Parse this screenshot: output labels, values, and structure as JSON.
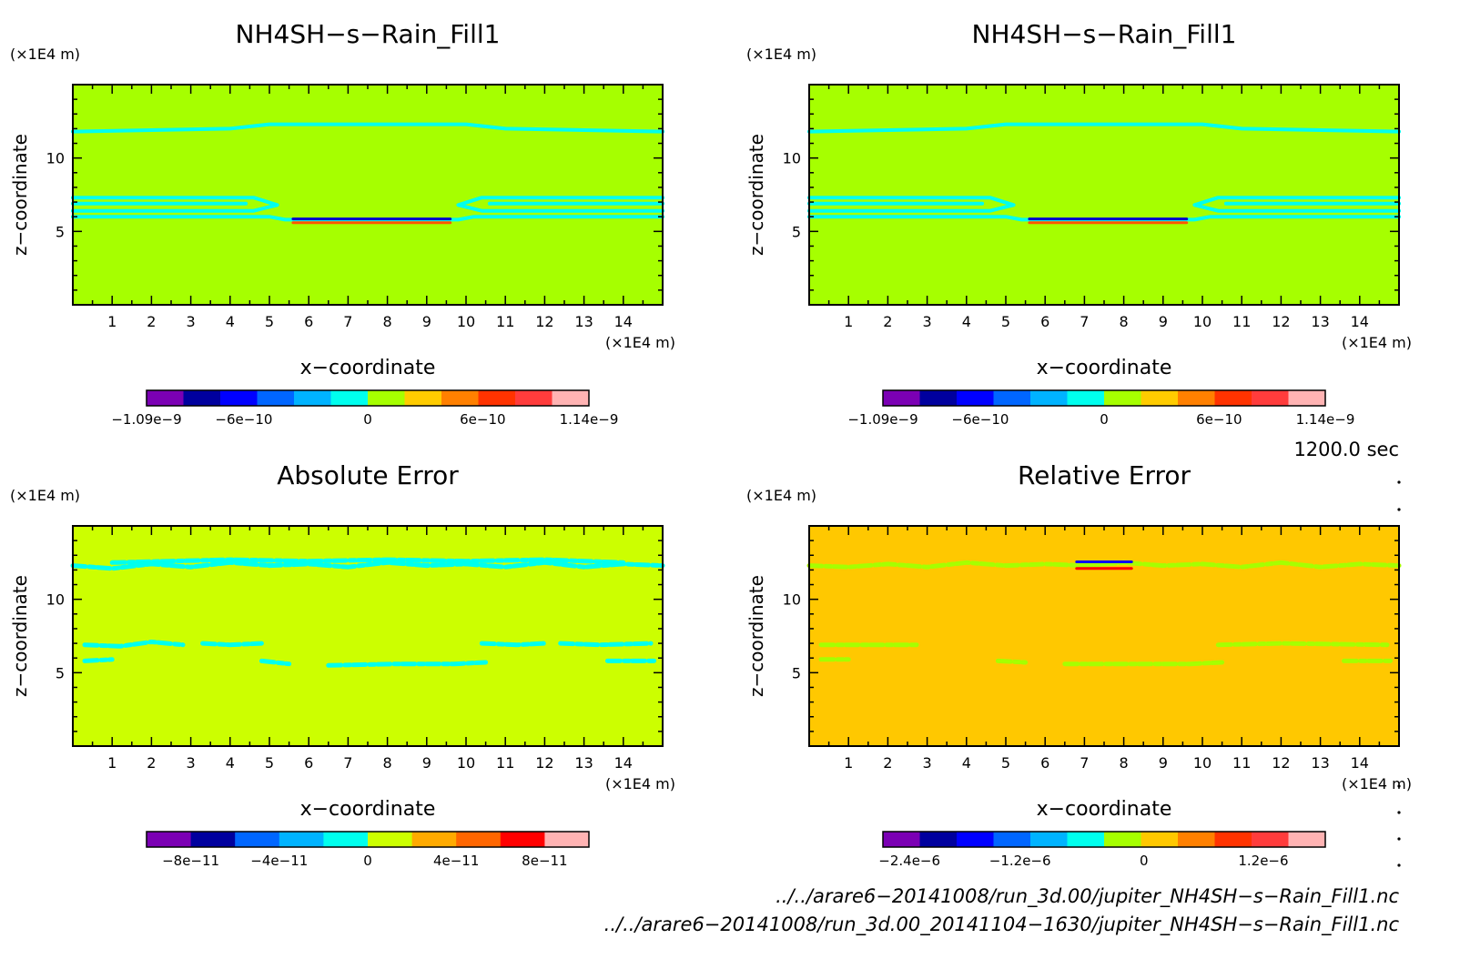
{
  "chart_data": [
    {
      "type": "heatmap",
      "title": "NH4SH−s−Rain_Fill1",
      "xlabel": "x−coordinate",
      "ylabel": "z−coordinate",
      "x_unit": "(×1E4 m)",
      "z_unit": "(×1E4 m)",
      "xlim": [
        0,
        15
      ],
      "ylim": [
        0,
        15
      ],
      "x_ticks": [
        1,
        2,
        3,
        4,
        5,
        6,
        7,
        8,
        9,
        10,
        11,
        12,
        13,
        14
      ],
      "z_ticks": [
        5,
        10
      ],
      "background_color": "#a6ff00",
      "contours": [
        {
          "level": "band",
          "color": "#00ffee",
          "points": [
            [
              0,
              11.8
            ],
            [
              4,
              12.0
            ],
            [
              5,
              12.3
            ],
            [
              10,
              12.3
            ],
            [
              11,
              12.0
            ],
            [
              15,
              11.8
            ]
          ]
        },
        {
          "level": "band",
          "color": "#00ffee",
          "points": [
            [
              0,
              7.3
            ],
            [
              4.6,
              7.3
            ],
            [
              5.2,
              6.8
            ],
            [
              4.6,
              6.4
            ],
            [
              0,
              6.4
            ]
          ]
        },
        {
          "level": "band",
          "color": "#00ffee",
          "points": [
            [
              0,
              6.9
            ],
            [
              4.4,
              6.9
            ]
          ]
        },
        {
          "level": "band",
          "color": "#00ffee",
          "points": [
            [
              15,
              7.3
            ],
            [
              10.4,
              7.3
            ],
            [
              9.8,
              6.8
            ],
            [
              10.4,
              6.4
            ],
            [
              15,
              6.4
            ]
          ]
        },
        {
          "level": "band",
          "color": "#00ffee",
          "points": [
            [
              15,
              6.9
            ],
            [
              10.6,
              6.9
            ]
          ]
        },
        {
          "level": "band",
          "color": "#00ffee",
          "points": [
            [
              0,
              6.0
            ],
            [
              5.0,
              6.0
            ],
            [
              5.4,
              5.8
            ],
            [
              9.8,
              5.8
            ],
            [
              10.2,
              6.0
            ],
            [
              15,
              6.0
            ]
          ]
        },
        {
          "level": "min",
          "color": "#0000cc",
          "points": [
            [
              5.6,
              5.85
            ],
            [
              9.6,
              5.85
            ]
          ]
        },
        {
          "level": "max",
          "color": "#ff5500",
          "points": [
            [
              5.6,
              5.6
            ],
            [
              9.6,
              5.6
            ]
          ]
        }
      ],
      "colorbar": {
        "colors": [
          "#7b00b4",
          "#00009e",
          "#0000ff",
          "#0066ff",
          "#00b3ff",
          "#00ffee",
          "#a6ff00",
          "#ffcc00",
          "#ff8000",
          "#ff3300",
          "#ff3c3c",
          "#ffb3b3"
        ],
        "tick_labels": [
          "−1.09e−9",
          "−6e−10",
          "0",
          "6e−10",
          "1.14e−9"
        ],
        "tick_fracs": [
          0,
          0.22,
          0.5,
          0.76,
          1
        ]
      }
    },
    {
      "type": "heatmap",
      "title": "NH4SH−s−Rain_Fill1",
      "xlabel": "x−coordinate",
      "ylabel": "z−coordinate",
      "x_unit": "(×1E4 m)",
      "z_unit": "(×1E4 m)",
      "xlim": [
        0,
        15
      ],
      "ylim": [
        0,
        15
      ],
      "x_ticks": [
        1,
        2,
        3,
        4,
        5,
        6,
        7,
        8,
        9,
        10,
        11,
        12,
        13,
        14
      ],
      "z_ticks": [
        5,
        10
      ],
      "background_color": "#a6ff00",
      "contours": [
        {
          "level": "band",
          "color": "#00ffee",
          "points": [
            [
              0,
              11.8
            ],
            [
              4,
              12.0
            ],
            [
              5,
              12.3
            ],
            [
              10,
              12.3
            ],
            [
              11,
              12.0
            ],
            [
              15,
              11.8
            ]
          ]
        },
        {
          "level": "band",
          "color": "#00ffee",
          "points": [
            [
              0,
              7.3
            ],
            [
              4.6,
              7.3
            ],
            [
              5.2,
              6.8
            ],
            [
              4.6,
              6.4
            ],
            [
              0,
              6.4
            ]
          ]
        },
        {
          "level": "band",
          "color": "#00ffee",
          "points": [
            [
              0,
              6.9
            ],
            [
              4.4,
              6.9
            ]
          ]
        },
        {
          "level": "band",
          "color": "#00ffee",
          "points": [
            [
              15,
              7.3
            ],
            [
              10.4,
              7.3
            ],
            [
              9.8,
              6.8
            ],
            [
              10.4,
              6.4
            ],
            [
              15,
              6.4
            ]
          ]
        },
        {
          "level": "band",
          "color": "#00ffee",
          "points": [
            [
              15,
              6.9
            ],
            [
              10.6,
              6.9
            ]
          ]
        },
        {
          "level": "band",
          "color": "#00ffee",
          "points": [
            [
              0,
              6.0
            ],
            [
              5.0,
              6.0
            ],
            [
              5.4,
              5.8
            ],
            [
              9.8,
              5.8
            ],
            [
              10.2,
              6.0
            ],
            [
              15,
              6.0
            ]
          ]
        },
        {
          "level": "min",
          "color": "#0000cc",
          "points": [
            [
              5.6,
              5.85
            ],
            [
              9.6,
              5.85
            ]
          ]
        },
        {
          "level": "max",
          "color": "#ff5500",
          "points": [
            [
              5.6,
              5.6
            ],
            [
              9.6,
              5.6
            ]
          ]
        }
      ],
      "colorbar": {
        "colors": [
          "#7b00b4",
          "#00009e",
          "#0000ff",
          "#0066ff",
          "#00b3ff",
          "#00ffee",
          "#a6ff00",
          "#ffcc00",
          "#ff8000",
          "#ff3300",
          "#ff3c3c",
          "#ffb3b3"
        ],
        "tick_labels": [
          "−1.09e−9",
          "−6e−10",
          "0",
          "6e−10",
          "1.14e−9"
        ],
        "tick_fracs": [
          0,
          0.22,
          0.5,
          0.76,
          1
        ]
      }
    },
    {
      "type": "heatmap",
      "title": "Absolute Error",
      "xlabel": "x−coordinate",
      "ylabel": "z−coordinate",
      "x_unit": "(×1E4 m)",
      "z_unit": "(×1E4 m)",
      "xlim": [
        0,
        15
      ],
      "ylim": [
        0,
        15
      ],
      "x_ticks": [
        1,
        2,
        3,
        4,
        5,
        6,
        7,
        8,
        9,
        10,
        11,
        12,
        13,
        14
      ],
      "z_ticks": [
        5,
        10
      ],
      "background_color": "#ccff00",
      "contours": [
        {
          "level": "noise",
          "color": "#00ffee",
          "points": [
            [
              0,
              12.3
            ],
            [
              1,
              12.1
            ],
            [
              2,
              12.4
            ],
            [
              3,
              12.2
            ],
            [
              4,
              12.5
            ],
            [
              5,
              12.3
            ],
            [
              6,
              12.4
            ],
            [
              7,
              12.2
            ],
            [
              8,
              12.5
            ],
            [
              9,
              12.3
            ],
            [
              10,
              12.4
            ],
            [
              11,
              12.2
            ],
            [
              12,
              12.5
            ],
            [
              13,
              12.2
            ],
            [
              14,
              12.4
            ],
            [
              15,
              12.3
            ]
          ]
        },
        {
          "level": "noise",
          "color": "#00ffee",
          "points": [
            [
              1,
              12.5
            ],
            [
              2.5,
              12.6
            ],
            [
              4,
              12.7
            ],
            [
              6,
              12.6
            ],
            [
              8,
              12.7
            ],
            [
              10,
              12.6
            ],
            [
              12,
              12.7
            ],
            [
              14,
              12.5
            ]
          ]
        },
        {
          "level": "noise",
          "color": "#00ffee",
          "points": [
            [
              0.3,
              6.9
            ],
            [
              1.2,
              6.8
            ],
            [
              2,
              7.1
            ],
            [
              2.8,
              6.9
            ]
          ]
        },
        {
          "level": "noise",
          "color": "#00ffee",
          "points": [
            [
              3.3,
              7.0
            ],
            [
              4.0,
              6.9
            ],
            [
              4.8,
              7.0
            ]
          ]
        },
        {
          "level": "noise",
          "color": "#00ffee",
          "points": [
            [
              10.4,
              7.0
            ],
            [
              11.3,
              6.9
            ],
            [
              12,
              7.0
            ]
          ]
        },
        {
          "level": "noise",
          "color": "#00ffee",
          "points": [
            [
              12.4,
              7.0
            ],
            [
              13.4,
              6.9
            ],
            [
              14.7,
              7.0
            ]
          ]
        },
        {
          "level": "noise",
          "color": "#00ffee",
          "points": [
            [
              0.3,
              5.8
            ],
            [
              1.0,
              5.9
            ]
          ]
        },
        {
          "level": "noise",
          "color": "#00ffee",
          "points": [
            [
              4.8,
              5.8
            ],
            [
              5.5,
              5.6
            ]
          ]
        },
        {
          "level": "noise",
          "color": "#00ffee",
          "points": [
            [
              6.5,
              5.5
            ],
            [
              8.2,
              5.6
            ],
            [
              9.7,
              5.6
            ],
            [
              10.5,
              5.7
            ]
          ]
        },
        {
          "level": "noise",
          "color": "#00ffee",
          "points": [
            [
              13.6,
              5.8
            ],
            [
              14.8,
              5.8
            ]
          ]
        }
      ],
      "colorbar": {
        "colors": [
          "#7b00b4",
          "#00009e",
          "#0066ff",
          "#00b3ff",
          "#00ffee",
          "#ccff00",
          "#ffaa00",
          "#ff6600",
          "#ff0000",
          "#ffb3b3"
        ],
        "tick_labels": [
          "−8e−11",
          "−4e−11",
          "0",
          "4e−11",
          "8e−11"
        ],
        "tick_fracs": [
          0.1,
          0.3,
          0.5,
          0.7,
          0.9
        ]
      }
    },
    {
      "type": "heatmap",
      "title": "Relative Error",
      "xlabel": "x−coordinate",
      "ylabel": "z−coordinate",
      "x_unit": "(×1E4 m)",
      "z_unit": "(×1E4 m)",
      "xlim": [
        0,
        15
      ],
      "ylim": [
        0,
        15
      ],
      "x_ticks": [
        1,
        2,
        3,
        4,
        5,
        6,
        7,
        8,
        9,
        10,
        11,
        12,
        13,
        14
      ],
      "z_ticks": [
        5,
        10
      ],
      "background_color": "#ffc800",
      "contours": [
        {
          "level": "noise",
          "color": "#a6ff00",
          "points": [
            [
              0,
              12.3
            ],
            [
              1,
              12.2
            ],
            [
              2,
              12.4
            ],
            [
              3,
              12.2
            ],
            [
              4,
              12.5
            ],
            [
              5,
              12.3
            ],
            [
              6,
              12.4
            ],
            [
              7,
              12.3
            ],
            [
              8,
              12.5
            ],
            [
              9,
              12.3
            ],
            [
              10,
              12.4
            ],
            [
              11,
              12.2
            ],
            [
              12,
              12.5
            ],
            [
              13,
              12.2
            ],
            [
              14,
              12.4
            ],
            [
              15,
              12.3
            ]
          ]
        },
        {
          "level": "noise",
          "color": "#a6ff00",
          "points": [
            [
              0.3,
              6.9
            ],
            [
              1.5,
              6.9
            ],
            [
              2.8,
              6.9
            ]
          ]
        },
        {
          "level": "noise",
          "color": "#a6ff00",
          "points": [
            [
              10.4,
              6.9
            ],
            [
              12,
              7.0
            ],
            [
              14.7,
              6.9
            ]
          ]
        },
        {
          "level": "noise",
          "color": "#a6ff00",
          "points": [
            [
              0.3,
              5.9
            ],
            [
              1.0,
              5.9
            ]
          ]
        },
        {
          "level": "noise",
          "color": "#a6ff00",
          "points": [
            [
              4.8,
              5.8
            ],
            [
              5.5,
              5.7
            ]
          ]
        },
        {
          "level": "noise",
          "color": "#a6ff00",
          "points": [
            [
              6.5,
              5.6
            ],
            [
              8.2,
              5.6
            ],
            [
              9.7,
              5.6
            ],
            [
              10.5,
              5.7
            ]
          ]
        },
        {
          "level": "noise",
          "color": "#a6ff00",
          "points": [
            [
              13.6,
              5.8
            ],
            [
              14.8,
              5.8
            ]
          ]
        },
        {
          "level": "max",
          "color": "#ff0000",
          "points": [
            [
              6.8,
              12.1
            ],
            [
              8.2,
              12.1
            ]
          ]
        },
        {
          "level": "min",
          "color": "#0000ff",
          "points": [
            [
              6.8,
              12.55
            ],
            [
              8.2,
              12.55
            ]
          ]
        }
      ],
      "colorbar": {
        "colors": [
          "#7b00b4",
          "#00009e",
          "#0000ff",
          "#0066ff",
          "#00b3ff",
          "#00ffee",
          "#a6ff00",
          "#ffc800",
          "#ff8000",
          "#ff3300",
          "#ff3c3c",
          "#ffb3b3"
        ],
        "tick_labels": [
          "−2.4e−6",
          "−1.2e−6",
          "0",
          "1.2e−6"
        ],
        "tick_fracs": [
          0.06,
          0.31,
          0.59,
          0.86
        ]
      }
    }
  ],
  "annotations": {
    "time_label": "1200.0 sec",
    "file_path_1": "../../arare6−20141008/run_3d.00/jupiter_NH4SH−s−Rain_Fill1.nc",
    "file_path_2": "../../arare6−20141008/run_3d.00_20141104−1630/jupiter_NH4SH−s−Rain_Fill1.nc"
  }
}
